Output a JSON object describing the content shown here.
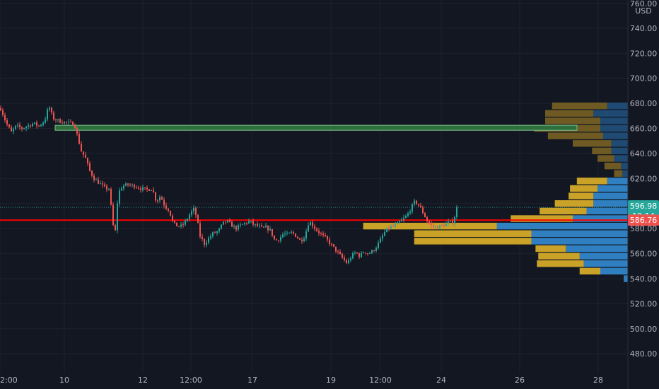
{
  "chart_data": {
    "type": "candlestick",
    "currency": "USD",
    "y_axis": {
      "range": [
        470,
        760
      ],
      "ticks": [
        480,
        500,
        520,
        540,
        560,
        580,
        600,
        620,
        640,
        660,
        680,
        700,
        720,
        740,
        760
      ],
      "tick_labels": [
        "480.00",
        "500.00",
        "520.00",
        "540.00",
        "560.00",
        "580.00",
        "600.00",
        "620.00",
        "640.00",
        "660.00",
        "680.00",
        "700.00",
        "720.00",
        "740.00",
        "760.00"
      ]
    },
    "x_axis": {
      "range": [
        0,
        930
      ],
      "ticks": [
        {
          "x": 0,
          "label": "2:00"
        },
        {
          "x": 91,
          "label": "10"
        },
        {
          "x": 202,
          "label": "12"
        },
        {
          "x": 270,
          "label": "12:00"
        },
        {
          "x": 357,
          "label": "17"
        },
        {
          "x": 468,
          "label": "19"
        },
        {
          "x": 538,
          "label": "12:00"
        },
        {
          "x": 624,
          "label": "24"
        },
        {
          "x": 735,
          "label": "26"
        },
        {
          "x": 846,
          "label": "28"
        }
      ]
    },
    "last_price": {
      "value": 596.98,
      "label": "596.98",
      "countdown": "12:14"
    },
    "horizontal_line": {
      "value": 586.76,
      "label": "586.76"
    },
    "zone": {
      "from": 658.5,
      "to": 662.5,
      "x_start": 78,
      "x_end": 816
    },
    "price_path": [
      [
        0,
        676
      ],
      [
        8,
        664
      ],
      [
        15,
        657
      ],
      [
        22,
        662
      ],
      [
        30,
        660
      ],
      [
        38,
        662
      ],
      [
        46,
        664
      ],
      [
        54,
        662
      ],
      [
        62,
        666
      ],
      [
        68,
        678
      ],
      [
        74,
        668
      ],
      [
        82,
        666
      ],
      [
        90,
        665
      ],
      [
        98,
        664
      ],
      [
        104,
        664
      ],
      [
        108,
        655
      ],
      [
        114,
        642
      ],
      [
        120,
        636
      ],
      [
        126,
        626
      ],
      [
        132,
        620
      ],
      [
        140,
        616
      ],
      [
        148,
        612
      ],
      [
        154,
        612
      ],
      [
        158,
        584
      ],
      [
        162,
        578
      ],
      [
        166,
        608
      ],
      [
        172,
        614
      ],
      [
        180,
        615
      ],
      [
        190,
        614
      ],
      [
        198,
        612
      ],
      [
        206,
        611
      ],
      [
        214,
        612
      ],
      [
        220,
        602
      ],
      [
        226,
        606
      ],
      [
        232,
        598
      ],
      [
        238,
        595
      ],
      [
        244,
        584
      ],
      [
        250,
        582
      ],
      [
        256,
        582
      ],
      [
        262,
        586
      ],
      [
        268,
        592
      ],
      [
        274,
        596
      ],
      [
        278,
        586
      ],
      [
        282,
        574
      ],
      [
        288,
        568
      ],
      [
        294,
        572
      ],
      [
        300,
        576
      ],
      [
        308,
        578
      ],
      [
        314,
        584
      ],
      [
        320,
        586
      ],
      [
        326,
        583
      ],
      [
        332,
        580
      ],
      [
        338,
        582
      ],
      [
        344,
        584
      ],
      [
        352,
        586
      ],
      [
        358,
        583
      ],
      [
        364,
        582
      ],
      [
        370,
        580
      ],
      [
        376,
        581
      ],
      [
        382,
        578
      ],
      [
        388,
        570
      ],
      [
        394,
        572
      ],
      [
        400,
        576
      ],
      [
        406,
        575
      ],
      [
        412,
        577
      ],
      [
        418,
        574
      ],
      [
        424,
        570
      ],
      [
        430,
        574
      ],
      [
        436,
        586
      ],
      [
        442,
        582
      ],
      [
        448,
        578
      ],
      [
        454,
        575
      ],
      [
        460,
        572
      ],
      [
        466,
        568
      ],
      [
        472,
        564
      ],
      [
        478,
        560
      ],
      [
        484,
        556
      ],
      [
        490,
        552
      ],
      [
        496,
        558
      ],
      [
        502,
        561
      ],
      [
        508,
        558
      ],
      [
        514,
        562
      ],
      [
        520,
        560
      ],
      [
        526,
        562
      ],
      [
        532,
        566
      ],
      [
        538,
        572
      ],
      [
        544,
        578
      ],
      [
        550,
        581
      ],
      [
        556,
        582
      ],
      [
        562,
        584
      ],
      [
        568,
        587
      ],
      [
        574,
        590
      ],
      [
        580,
        596
      ],
      [
        586,
        602
      ],
      [
        592,
        598
      ],
      [
        598,
        592
      ],
      [
        604,
        585
      ],
      [
        610,
        582
      ],
      [
        616,
        581
      ],
      [
        622,
        582
      ],
      [
        628,
        583
      ],
      [
        634,
        585
      ],
      [
        640,
        585
      ],
      [
        645,
        596.98
      ]
    ],
    "volume_profile": [
      {
        "price": 678,
        "buy": 15,
        "sell": 40
      },
      {
        "price": 672,
        "buy": 25,
        "sell": 35
      },
      {
        "price": 666,
        "buy": 20,
        "sell": 40
      },
      {
        "price": 660,
        "buy": 20,
        "sell": 48
      },
      {
        "price": 654,
        "buy": 18,
        "sell": 40
      },
      {
        "price": 648,
        "buy": 12,
        "sell": 28
      },
      {
        "price": 642,
        "buy": 12,
        "sell": 14
      },
      {
        "price": 636,
        "buy": 10,
        "sell": 12
      },
      {
        "price": 630,
        "buy": 5,
        "sell": 12
      },
      {
        "price": 624,
        "buy": 4,
        "sell": 6
      },
      {
        "price": 618,
        "buy": 15,
        "sell": 22
      },
      {
        "price": 612,
        "buy": 22,
        "sell": 20
      },
      {
        "price": 606,
        "buy": 25,
        "sell": 18
      },
      {
        "price": 600,
        "buy": 25,
        "sell": 28
      },
      {
        "price": 594,
        "buy": 30,
        "sell": 34
      },
      {
        "price": 588,
        "buy": 40,
        "sell": 45
      },
      {
        "price": 582,
        "buy": 95,
        "sell": 97
      },
      {
        "price": 576,
        "buy": 70,
        "sell": 85
      },
      {
        "price": 570,
        "buy": 70,
        "sell": 85
      },
      {
        "price": 564,
        "buy": 45,
        "sell": 22
      },
      {
        "price": 558,
        "buy": 35,
        "sell": 30
      },
      {
        "price": 552,
        "buy": 32,
        "sell": 34
      },
      {
        "price": 546,
        "buy": 20,
        "sell": 15
      },
      {
        "price": 540,
        "buy": 3,
        "sell": 0
      }
    ],
    "colors": {
      "background": "#131722",
      "up": "#26a69a",
      "down": "#ef5350",
      "grid": "#1e222d",
      "axis_text": "#b2b5be",
      "price_line": "#ff0000",
      "zone_fill": "#2f6f3e",
      "zone_stroke": "#7ec08a",
      "profile_buy": "#2f7fc1",
      "profile_sell": "#c9a227",
      "profile_buy_dim": "#1e4a73",
      "profile_sell_dim": "#6e5a22",
      "last_tag": "#26a69a",
      "line_tag": "#ef5350"
    }
  }
}
